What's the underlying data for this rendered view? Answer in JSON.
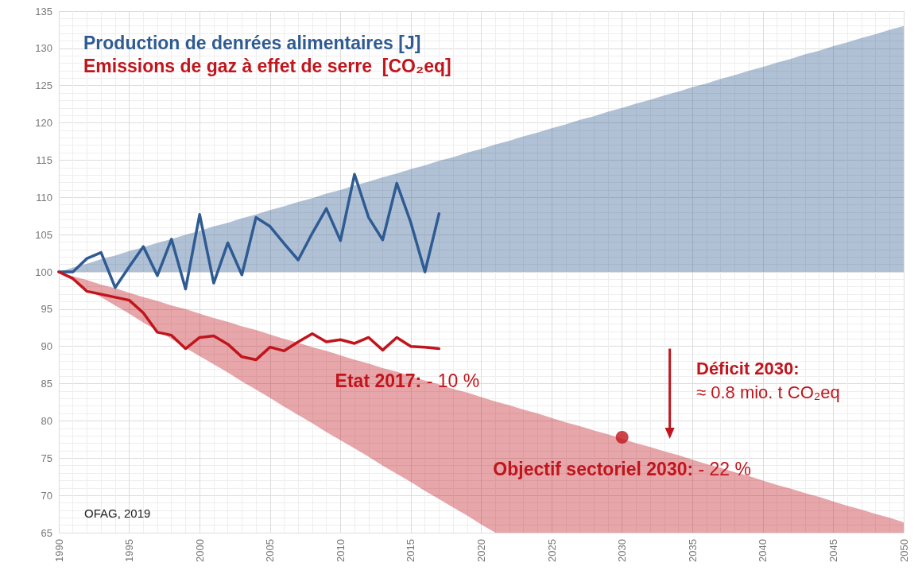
{
  "chart_data": {
    "type": "line",
    "xlim": [
      1990,
      2050
    ],
    "xticks": [
      1990,
      1995,
      2000,
      2005,
      2010,
      2015,
      2020,
      2025,
      2030,
      2035,
      2040,
      2045,
      2050
    ],
    "ylim": [
      65,
      135
    ],
    "yticks": [
      65,
      70,
      75,
      80,
      85,
      90,
      95,
      100,
      105,
      110,
      115,
      120,
      125,
      130,
      135
    ],
    "grid": true,
    "legend": "top left",
    "marker": "none",
    "x": [
      1990,
      1991,
      1992,
      1993,
      1994,
      1995,
      1996,
      1997,
      1998,
      1999,
      2000,
      2001,
      2002,
      2003,
      2004,
      2005,
      2006,
      2007,
      2008,
      2009,
      2010,
      2011,
      2012,
      2013,
      2014,
      2015,
      2016,
      2017,
      2018,
      2019,
      2020,
      2021,
      2022,
      2023,
      2024,
      2025,
      2026,
      2027,
      2028,
      2029,
      2030,
      2031,
      2032,
      2033,
      2034,
      2035,
      2036,
      2037,
      2038,
      2039,
      2040,
      2041,
      2042,
      2043,
      2044,
      2045,
      2046,
      2047,
      2048,
      2049,
      2050
    ],
    "series": [
      {
        "name": "Production de denrées alimentaires [J]",
        "color": "#2f5b93",
        "values": [
          100,
          100,
          101.8,
          102.6,
          97.9,
          100.7,
          103.4,
          99.5,
          104.4,
          97.7,
          107.7,
          98.5,
          103.9,
          99.6,
          107.3,
          106.1,
          103.8,
          101.6,
          105.2,
          108.5,
          104.2,
          113.1,
          107.3,
          104.3,
          111.9,
          106.6,
          100,
          107.8,
          null,
          null,
          null,
          null,
          null,
          null,
          null,
          null,
          null,
          null,
          null,
          null,
          null,
          null,
          null,
          null,
          null,
          null,
          null,
          null,
          null,
          null,
          null,
          null,
          null,
          null,
          null,
          null,
          null,
          null,
          null,
          null,
          null
        ],
        "lower": [
          100,
          100,
          100,
          100,
          100,
          100,
          100,
          100,
          100,
          100,
          100,
          100,
          100,
          100,
          100,
          100,
          100,
          100,
          100,
          100,
          100,
          100,
          100,
          100,
          100,
          100,
          100,
          100,
          100,
          100,
          100,
          100,
          100,
          100,
          100,
          100,
          100,
          100,
          100,
          100,
          100,
          100,
          100,
          100,
          100,
          100,
          100,
          100,
          100,
          100,
          100,
          100,
          100,
          100,
          100,
          100,
          100,
          100,
          100,
          100,
          100
        ],
        "upper": [
          100.0,
          100.6,
          101.1,
          101.7,
          102.2,
          102.8,
          103.3,
          103.9,
          104.4,
          105.0,
          105.5,
          106.1,
          106.6,
          107.2,
          107.7,
          108.3,
          108.8,
          109.4,
          109.9,
          110.5,
          111.0,
          111.6,
          112.1,
          112.7,
          113.2,
          113.8,
          114.3,
          114.9,
          115.4,
          116.0,
          116.5,
          117.1,
          117.6,
          118.2,
          118.7,
          119.3,
          119.8,
          120.4,
          120.9,
          121.5,
          122.0,
          122.6,
          123.1,
          123.7,
          124.2,
          124.8,
          125.3,
          125.9,
          126.4,
          127.0,
          127.5,
          128.1,
          128.6,
          129.2,
          129.7,
          130.3,
          130.8,
          131.4,
          131.9,
          132.5,
          133.0
        ]
      },
      {
        "name": "Emissions de gaz à effet de serre  [CO₂eq]",
        "color": "#c0151c",
        "values": [
          100,
          99.1,
          97.4,
          97,
          96.6,
          96.2,
          94.5,
          91.9,
          91.5,
          89.7,
          91.2,
          91.4,
          90.3,
          88.6,
          88.2,
          89.9,
          89.4,
          90.6,
          91.7,
          90.6,
          90.9,
          90.4,
          91.2,
          89.5,
          91.2,
          90,
          89.9,
          89.7,
          null,
          null,
          null,
          null,
          null,
          null,
          null,
          null,
          null,
          null,
          null,
          null,
          null,
          null,
          null,
          null,
          null,
          null,
          null,
          null,
          null,
          null,
          null,
          null,
          null,
          null,
          null,
          null,
          null,
          null,
          null,
          null,
          null
        ],
        "lower": [
          100,
          98.9,
          97.7,
          96.6,
          95.5,
          94.4,
          93.2,
          92.1,
          91.0,
          89.8,
          88.7,
          87.6,
          86.5,
          85.3,
          84.2,
          83.1,
          81.9,
          80.8,
          79.7,
          78.5,
          77.4,
          76.3,
          75.2,
          74.0,
          72.9,
          71.8,
          70.6,
          69.5,
          68.4,
          67.3,
          66.1,
          65.0,
          65.0,
          65.0,
          65.0,
          65.0,
          65.0,
          65.0,
          65.0,
          65.0,
          65.0,
          65.0,
          65.0,
          65.0,
          65.0,
          65.0,
          65.0,
          65.0,
          65.0,
          65.0,
          65.0,
          65.0,
          65.0,
          65.0,
          65.0,
          65.0,
          65.0,
          65.0,
          65.0,
          65.0,
          65.0
        ],
        "upper": [
          100,
          99.4,
          98.9,
          98.3,
          97.8,
          97.2,
          96.6,
          96.1,
          95.5,
          95.0,
          94.4,
          93.8,
          93.3,
          92.7,
          92.2,
          91.6,
          91.0,
          90.5,
          89.9,
          89.4,
          88.8,
          88.2,
          87.7,
          87.1,
          86.6,
          86.0,
          85.4,
          84.9,
          84.3,
          83.8,
          83.2,
          82.6,
          82.1,
          81.5,
          81.0,
          80.4,
          79.8,
          79.3,
          78.7,
          78.2,
          77.6,
          77.0,
          76.5,
          75.9,
          75.4,
          74.8,
          74.2,
          73.7,
          73.1,
          72.6,
          72.0,
          71.4,
          70.9,
          70.3,
          69.8,
          69.2,
          68.6,
          68.1,
          67.5,
          67.0,
          66.4
        ]
      },
      {
        "type": "scatter",
        "marker": "circle",
        "color": "#c0151c",
        "x": [
          2030
        ],
        "values": [
          77.8
        ]
      }
    ],
    "annotations": [
      {
        "text": "Etat 2017: - 10 %",
        "x": 2017,
        "y": 89.7
      },
      {
        "text": "Objectif sectoriel 2030: - 22 %",
        "x": 2030,
        "y": 77.8
      },
      "Déficit 2030:\n≈ 0.8 mio. t CO₂eq",
      "OFAG, 2019"
    ]
  }
}
